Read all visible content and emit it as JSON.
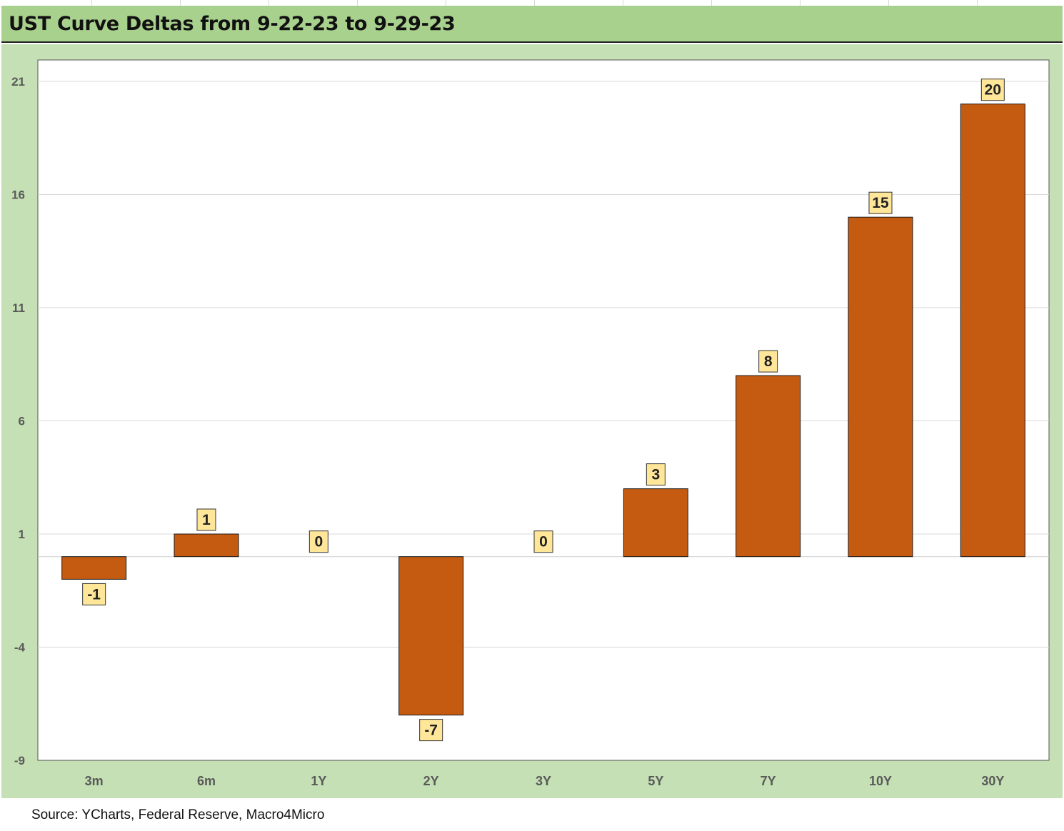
{
  "title": "UST Curve Deltas from 9-22-23 to 9-29-23",
  "source": "Source: YCharts, Federal Reserve, Macro4Micro",
  "colors": {
    "bar": "#c55a11",
    "background": "#c5e0b4",
    "title_bar": "#a9d18e",
    "plot": "#ffffff",
    "label_box": "#ffe699"
  },
  "chart_data": {
    "type": "bar",
    "title": "UST Curve Deltas from 9-22-23 to 9-29-23",
    "categories": [
      "3m",
      "6m",
      "1Y",
      "2Y",
      "3Y",
      "5Y",
      "7Y",
      "10Y",
      "30Y"
    ],
    "values": [
      -1,
      1,
      0,
      -7,
      0,
      3,
      8,
      15,
      20
    ],
    "data_labels": [
      "-1",
      "1",
      "0",
      "-7",
      "0",
      "3",
      "8",
      "15",
      "20"
    ],
    "ylim": [
      -9,
      21
    ],
    "yticks": [
      21,
      16,
      11,
      6,
      1,
      -4,
      -9
    ],
    "grid": true,
    "legend": "none"
  }
}
